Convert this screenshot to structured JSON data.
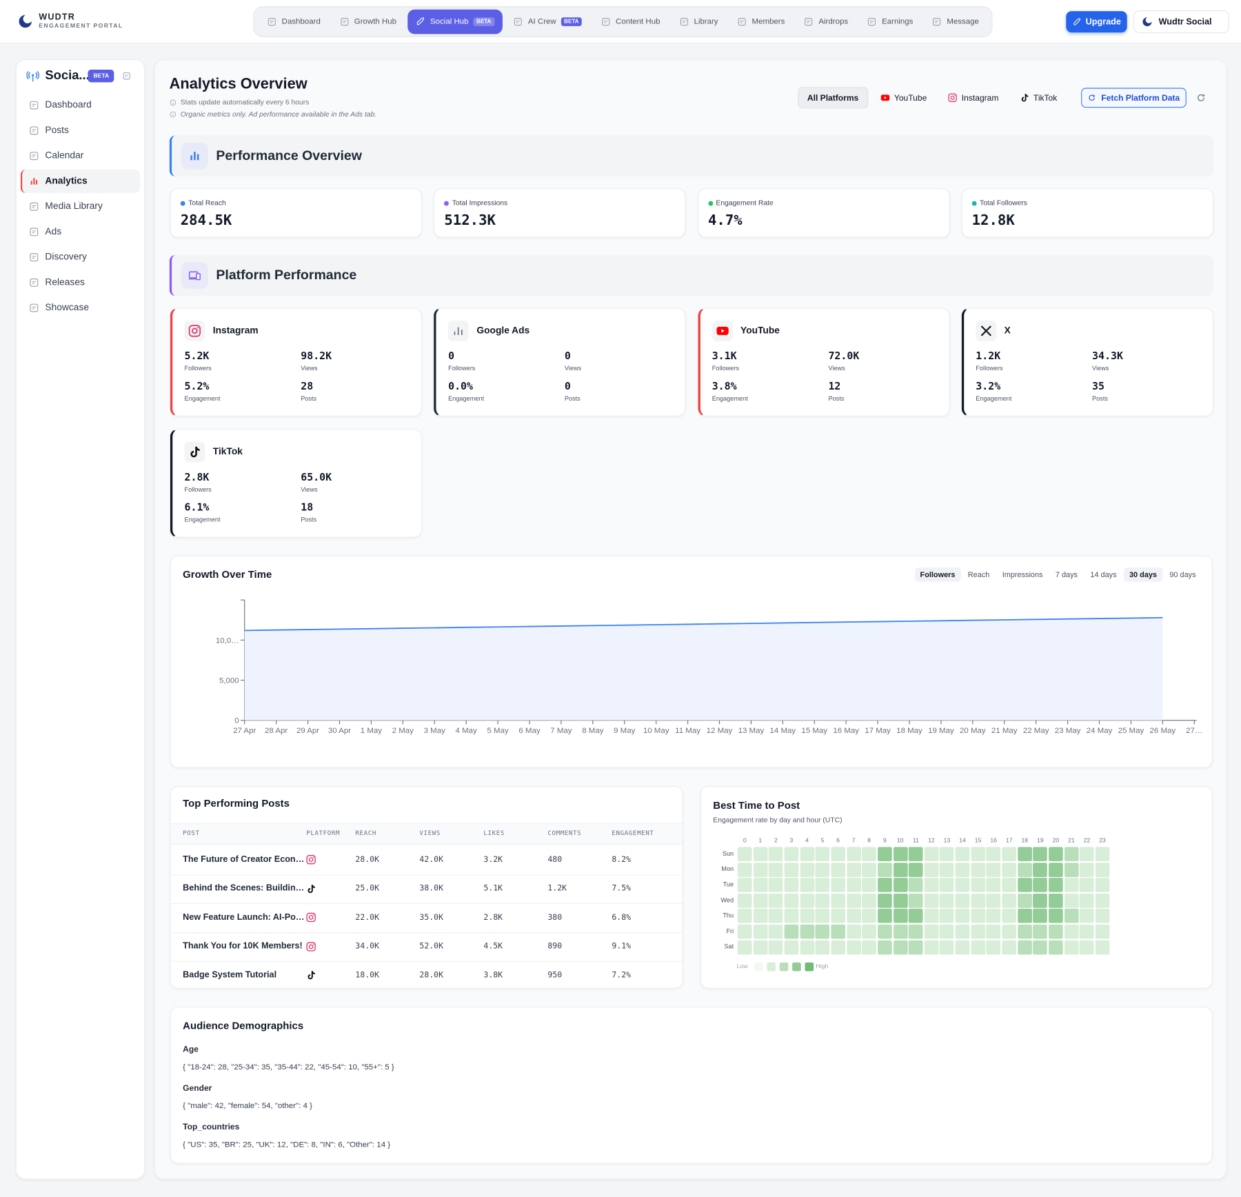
{
  "nav": {
    "brand": "WUDTR",
    "brand_sub": "ENGAGEMENT PORTAL",
    "items": [
      {
        "label": "Dashboard"
      },
      {
        "label": "Growth Hub"
      },
      {
        "label": "Social Hub",
        "badge": "BETA"
      },
      {
        "label": "AI Crew",
        "badge": "BETA"
      },
      {
        "label": "Content Hub"
      },
      {
        "label": "Library"
      },
      {
        "label": "Members"
      },
      {
        "label": "Airdrops"
      },
      {
        "label": "Earnings"
      },
      {
        "label": "Message"
      }
    ],
    "active": 2,
    "upgrade": "Upgrade",
    "account": "Wudtr Social"
  },
  "sidebar": {
    "title": "Socia...",
    "badge": "BETA",
    "items": [
      "Dashboard",
      "Posts",
      "Calendar",
      "Analytics",
      "Media Library",
      "Ads",
      "Discovery",
      "Releases",
      "Showcase"
    ],
    "active": 3
  },
  "header": {
    "title": "Analytics Overview",
    "notes": [
      "Stats update automatically every 6 hours",
      "Organic metrics only. Ad performance available in the Ads tab."
    ],
    "filters": [
      "All Platforms",
      "YouTube",
      "Instagram",
      "TikTok"
    ],
    "active_filter": 0,
    "fetch": "Fetch Platform Data"
  },
  "overview": {
    "title": "Performance Overview",
    "cards": [
      {
        "label": "Total Reach",
        "value": "284.5K",
        "color": "#3b82f6"
      },
      {
        "label": "Total Impressions",
        "value": "512.3K",
        "color": "#8b5cf6"
      },
      {
        "label": "Engagement Rate",
        "value": "4.7%",
        "color": "#22c55e"
      },
      {
        "label": "Total Followers",
        "value": "12.8K",
        "color": "#14b8a6"
      }
    ]
  },
  "platforms": {
    "title": "Platform Performance",
    "labels": {
      "followers": "Followers",
      "views": "Views",
      "engagement": "Engagement",
      "posts": "Posts"
    },
    "cards": [
      {
        "name": "Instagram",
        "color": "#ef4444",
        "followers": "5.2K",
        "views": "98.2K",
        "engagement": "5.2%",
        "posts": "28"
      },
      {
        "name": "Google Ads",
        "color": "#1f2937",
        "followers": "0",
        "views": "0",
        "engagement": "0.0%",
        "posts": "0"
      },
      {
        "name": "YouTube",
        "color": "#ef4444",
        "followers": "3.1K",
        "views": "72.0K",
        "engagement": "3.8%",
        "posts": "12"
      },
      {
        "name": "X",
        "color": "#111827",
        "followers": "1.2K",
        "views": "34.3K",
        "engagement": "3.2%",
        "posts": "35"
      },
      {
        "name": "TikTok",
        "color": "#111827",
        "followers": "2.8K",
        "views": "65.0K",
        "engagement": "6.1%",
        "posts": "18"
      }
    ]
  },
  "growth_controls": {
    "items": [
      "Followers",
      "Reach",
      "Impressions",
      "7 days",
      "14 days",
      "30 days",
      "90 days"
    ],
    "active": [
      0,
      5
    ]
  },
  "chart_data": {
    "type": "area",
    "title": "Growth Over Time",
    "categories": [
      "27 Apr",
      "28 Apr",
      "29 Apr",
      "30 Apr",
      "1 May",
      "2 May",
      "3 May",
      "4 May",
      "5 May",
      "6 May",
      "7 May",
      "8 May",
      "9 May",
      "10 May",
      "11 May",
      "12 May",
      "13 May",
      "14 May",
      "15 May",
      "16 May",
      "17 May",
      "18 May",
      "19 May",
      "20 May",
      "21 May",
      "22 May",
      "23 May",
      "24 May",
      "25 May",
      "26 May",
      "27…"
    ],
    "values": [
      11200,
      11260,
      11310,
      11370,
      11420,
      11480,
      11530,
      11590,
      11640,
      11700,
      11750,
      11810,
      11860,
      11920,
      11970,
      12030,
      12080,
      12140,
      12190,
      12250,
      12300,
      12360,
      12410,
      12470,
      12520,
      12580,
      12630,
      12690,
      12740,
      12800,
      null
    ],
    "color": "#3b82f6",
    "fill_color": "#eef3fd",
    "ylim": [
      0,
      15000
    ],
    "yticks": [
      0,
      {
        "value": 5000,
        "label": "5,000"
      },
      {
        "value": 10000,
        "label": "10,0…"
      },
      {
        "value": 15000,
        "label": null
      }
    ]
  },
  "top_posts": {
    "title": "Top Performing Posts",
    "columns": [
      "POST",
      "PLATFORM",
      "REACH",
      "VIEWS",
      "LIKES",
      "COMMENTS",
      "ENGAGEMENT"
    ],
    "rows": [
      {
        "title": "The Future of Creator Econ…",
        "platform": "Instagram",
        "reach": "28.0K",
        "views": "42.0K",
        "likes": "3.2K",
        "comments": "480",
        "engagement": "8.2%"
      },
      {
        "title": "Behind the Scenes: Buildin…",
        "platform": "TikTok",
        "reach": "25.0K",
        "views": "38.0K",
        "likes": "5.1K",
        "comments": "1.2K",
        "engagement": "7.5%"
      },
      {
        "title": "New Feature Launch: AI-Po…",
        "platform": "Instagram",
        "reach": "22.0K",
        "views": "35.0K",
        "likes": "2.8K",
        "comments": "380",
        "engagement": "6.8%"
      },
      {
        "title": "Thank You for 10K Members!",
        "platform": "Instagram",
        "reach": "34.0K",
        "views": "52.0K",
        "likes": "4.5K",
        "comments": "890",
        "engagement": "9.1%"
      },
      {
        "title": "Badge System Tutorial",
        "platform": "TikTok",
        "reach": "18.0K",
        "views": "28.0K",
        "likes": "3.8K",
        "comments": "950",
        "engagement": "7.2%"
      }
    ]
  },
  "best_time": {
    "title": "Best Time to Post",
    "subtitle": "Engagement rate by day and hour (UTC)",
    "days": [
      "Sun",
      "Mon",
      "Tue",
      "Wed",
      "Thu",
      "Fri",
      "Sat"
    ],
    "hours": [
      0,
      1,
      2,
      3,
      4,
      5,
      6,
      7,
      8,
      9,
      10,
      11,
      12,
      13,
      14,
      15,
      16,
      17,
      18,
      19,
      20,
      21,
      22,
      23
    ],
    "levels": [
      [
        1,
        1,
        1,
        1,
        1,
        1,
        1,
        1,
        1,
        3,
        3,
        3,
        1,
        1,
        1,
        1,
        1,
        1,
        3,
        3,
        3,
        2,
        1,
        1
      ],
      [
        1,
        1,
        1,
        1,
        1,
        1,
        1,
        1,
        1,
        2,
        3,
        3,
        1,
        1,
        1,
        1,
        1,
        1,
        2,
        3,
        3,
        2,
        1,
        1
      ],
      [
        1,
        1,
        1,
        1,
        1,
        1,
        1,
        1,
        1,
        3,
        3,
        2,
        1,
        1,
        1,
        1,
        1,
        1,
        3,
        3,
        3,
        1,
        1,
        1
      ],
      [
        1,
        1,
        1,
        1,
        1,
        1,
        1,
        1,
        1,
        3,
        3,
        2,
        1,
        1,
        1,
        1,
        1,
        1,
        2,
        3,
        3,
        1,
        1,
        1
      ],
      [
        1,
        1,
        1,
        1,
        1,
        1,
        1,
        1,
        1,
        3,
        3,
        3,
        1,
        1,
        1,
        1,
        1,
        1,
        3,
        3,
        3,
        2,
        1,
        1
      ],
      [
        1,
        1,
        1,
        2,
        2,
        2,
        2,
        1,
        1,
        2,
        2,
        2,
        1,
        1,
        1,
        1,
        1,
        1,
        2,
        2,
        2,
        1,
        1,
        1
      ],
      [
        1,
        1,
        1,
        1,
        1,
        1,
        1,
        1,
        1,
        2,
        2,
        2,
        1,
        1,
        1,
        1,
        1,
        1,
        2,
        2,
        2,
        1,
        1,
        1
      ]
    ],
    "scale_colors": [
      "#f3f8f3",
      "#d8eed8",
      "#b9dfba",
      "#94cc97",
      "#72bb76"
    ],
    "legend_low": "Low",
    "legend_high": "High"
  },
  "demographics": {
    "title": "Audience Demographics",
    "sections": [
      {
        "label": "Age",
        "text": "{ \"18-24\": 28, \"25-34\": 35, \"35-44\": 22, \"45-54\": 10, \"55+\": 5 }"
      },
      {
        "label": "Gender",
        "text": "{ \"male\": 42, \"female\": 54, \"other\": 4 }"
      },
      {
        "label": "Top_countries",
        "text": "{ \"US\": 35, \"BR\": 25, \"UK\": 12, \"DE\": 8, \"IN\": 6, \"Other\": 14 }"
      }
    ]
  }
}
